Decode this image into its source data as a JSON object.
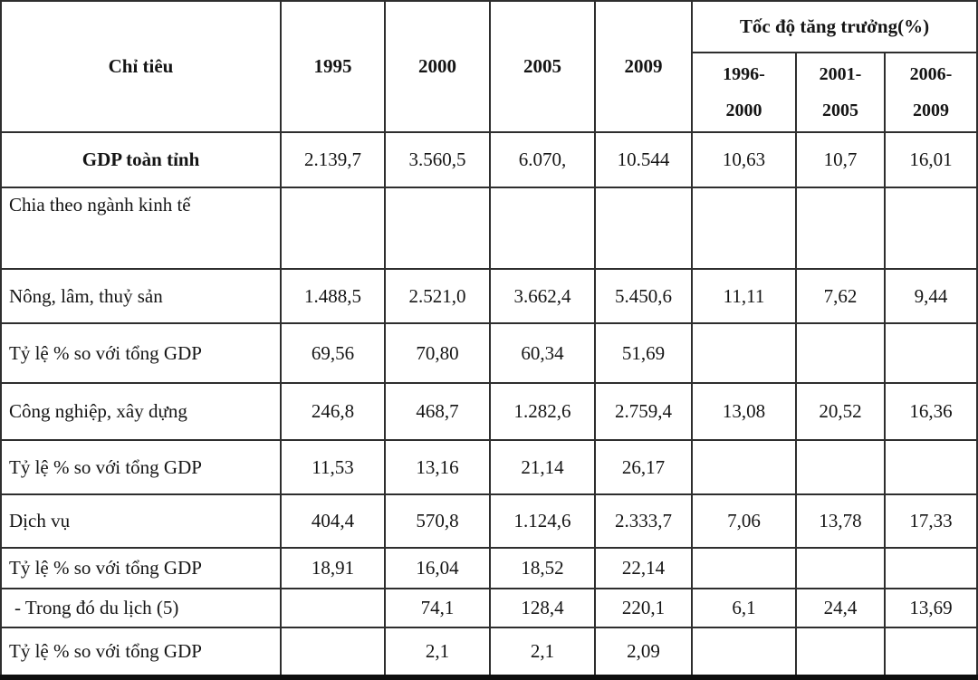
{
  "table": {
    "header": {
      "indicator_label": "Chỉ tiêu",
      "year_columns": [
        "1995",
        "2000",
        "2005",
        "2009"
      ],
      "growth_group_label": "Tốc độ tăng trưởng(%)",
      "growth_periods": [
        "1996-\n2000",
        "2001-\n2005",
        "2006-\n2009"
      ]
    },
    "rows": [
      {
        "label": "GDP toàn tỉnh",
        "values": [
          "2.139,7",
          "3.560,5",
          "6.070,",
          "10.544",
          "10,63",
          "10,7",
          "16,01"
        ]
      },
      {
        "label": "Chia theo ngành kinh tế",
        "values": [
          "",
          "",
          "",
          "",
          "",
          "",
          ""
        ]
      },
      {
        "label": "Nông, lâm, thuỷ sản",
        "values": [
          "1.488,5",
          "2.521,0",
          "3.662,4",
          "5.450,6",
          "11,11",
          "7,62",
          "9,44"
        ]
      },
      {
        "label": "Tỷ lệ % so với tổng GDP",
        "values": [
          "69,56",
          "70,80",
          "60,34",
          "51,69",
          "",
          "",
          ""
        ]
      },
      {
        "label": "Công nghiệp, xây dựng",
        "values": [
          "246,8",
          "468,7",
          "1.282,6",
          "2.759,4",
          "13,08",
          "20,52",
          "16,36"
        ]
      },
      {
        "label": "Tỷ lệ % so với tổng GDP",
        "values": [
          "11,53",
          "13,16",
          "21,14",
          "26,17",
          "",
          "",
          ""
        ]
      },
      {
        "label": "Dịch vụ",
        "values": [
          "404,4",
          "570,8",
          "1.124,6",
          "2.333,7",
          "7,06",
          "13,78",
          "17,33"
        ]
      },
      {
        "label": "Tỷ lệ % so với tổng GDP",
        "values": [
          "18,91",
          "16,04",
          "18,52",
          "22,14",
          "",
          "",
          ""
        ]
      },
      {
        "label": "- Trong đó du lịch (5)",
        "values": [
          "",
          "74,1",
          "128,4",
          "220,1",
          "6,1",
          "24,4",
          "13,69"
        ]
      },
      {
        "label": "Tỷ lệ % so với tổng GDP",
        "values": [
          "",
          "2,1",
          "2,1",
          "2,09",
          "",
          "",
          ""
        ]
      }
    ]
  },
  "colors": {
    "border": "#2e2e2e",
    "bottom_border": "#0f0f0f",
    "text": "#151515",
    "background": "#ffffff"
  }
}
